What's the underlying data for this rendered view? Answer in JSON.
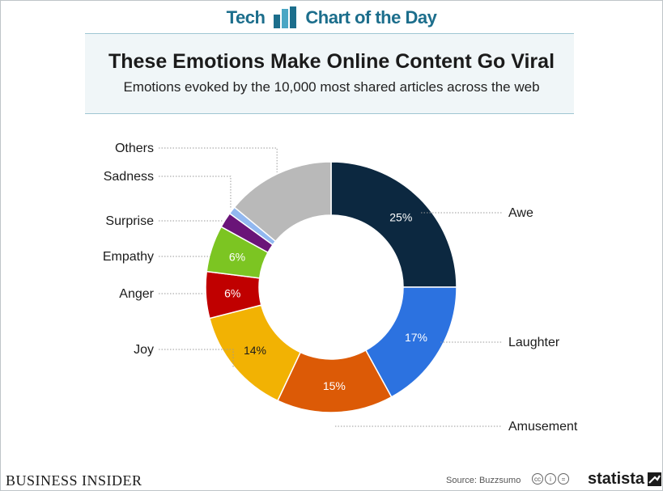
{
  "header": {
    "left_text": "Tech",
    "right_text": "Chart of the Day"
  },
  "title": "These Emotions Make Online Content Go Viral",
  "subtitle": "Emotions evoked by the 10,000 most shared articles across the web",
  "footer": {
    "brand": "BUSINESS INSIDER",
    "source": "Source: Buzzsumo",
    "statista": "statista"
  },
  "colors": {
    "accent": "#1c6e8c",
    "awe": "#0c2840",
    "laughter": "#2c72e0",
    "amusement": "#dc5a06",
    "joy": "#f2b203",
    "anger": "#c00000",
    "empathy": "#7cc522",
    "surprise": "#6a1478",
    "sadness": "#92b8f0",
    "others": "#b9b9b9"
  },
  "chart_data": {
    "type": "pie",
    "donut": true,
    "categories": [
      "Awe",
      "Laughter",
      "Amusement",
      "Joy",
      "Anger",
      "Empathy",
      "Surprise",
      "Sadness",
      "Others"
    ],
    "values": [
      25,
      17,
      15,
      14,
      6,
      6,
      2,
      1,
      14
    ],
    "value_labels": [
      "25%",
      "17%",
      "15%",
      "14%",
      "6%",
      "6%",
      "",
      "",
      ""
    ],
    "colors": [
      "#0c2840",
      "#2c72e0",
      "#dc5a06",
      "#f2b203",
      "#c00000",
      "#7cc522",
      "#6a1478",
      "#92b8f0",
      "#b9b9b9"
    ],
    "unit": "%"
  }
}
